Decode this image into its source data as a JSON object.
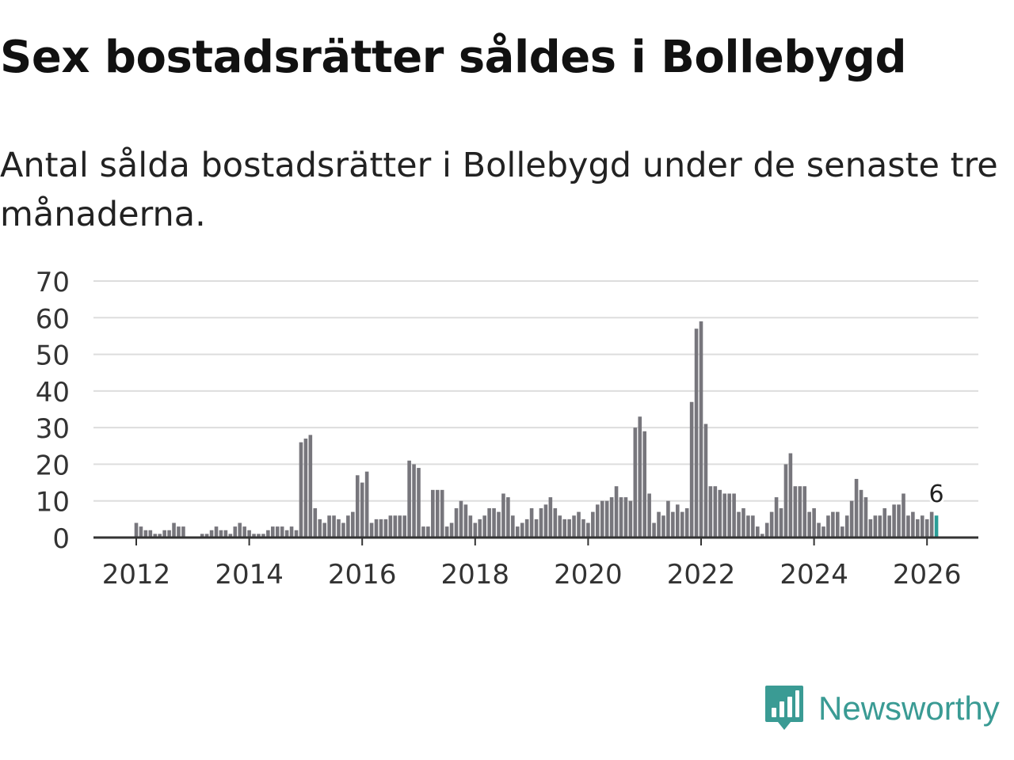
{
  "title": "Sex bostadsrätter såldes i Bollebygd",
  "subtitle": "Antal sålda bostadsrätter i Bollebygd under de senaste tre månaderna.",
  "brand": {
    "name": "Newsworthy",
    "icon": "newsworthy-logo-icon"
  },
  "colors": {
    "bar": "#77767c",
    "highlight": "#2a9d97",
    "grid": "#dddddd",
    "axis": "#333333",
    "brand": "#3a9b94"
  },
  "chart_data": {
    "type": "bar",
    "title": "Sex bostadsrätter såldes i Bollebygd",
    "xlabel": "",
    "ylabel": "",
    "ylim": [
      0,
      70
    ],
    "yticks": [
      0,
      10,
      20,
      30,
      40,
      50,
      60,
      70
    ],
    "xticks": [
      {
        "label": "2012",
        "year": 2012
      },
      {
        "label": "2014",
        "year": 2014
      },
      {
        "label": "2016",
        "year": 2016
      },
      {
        "label": "2018",
        "year": 2018
      },
      {
        "label": "2020",
        "year": 2020
      },
      {
        "label": "2022",
        "year": 2022
      },
      {
        "label": "2024",
        "year": 2024
      },
      {
        "label": "2026",
        "year": 2026
      }
    ],
    "start": "2011-01",
    "frequency": "monthly",
    "values": [
      0,
      0,
      0,
      0,
      0,
      0,
      0,
      0,
      0,
      0,
      0,
      0,
      4,
      3,
      2,
      2,
      1,
      1,
      2,
      2,
      4,
      3,
      3,
      0,
      0,
      0,
      1,
      1,
      2,
      3,
      2,
      2,
      1,
      3,
      4,
      3,
      2,
      1,
      1,
      1,
      2,
      3,
      3,
      3,
      2,
      3,
      2,
      26,
      27,
      28,
      8,
      5,
      4,
      6,
      6,
      5,
      4,
      6,
      7,
      17,
      15,
      18,
      4,
      5,
      5,
      5,
      6,
      6,
      6,
      6,
      21,
      20,
      19,
      3,
      3,
      13,
      13,
      13,
      3,
      4,
      8,
      10,
      9,
      6,
      4,
      5,
      6,
      8,
      8,
      7,
      12,
      11,
      6,
      3,
      4,
      5,
      8,
      5,
      8,
      9,
      11,
      8,
      6,
      5,
      5,
      6,
      7,
      5,
      4,
      7,
      9,
      10,
      10,
      11,
      14,
      11,
      11,
      10,
      30,
      33,
      29,
      12,
      4,
      7,
      6,
      10,
      7,
      9,
      7,
      8,
      37,
      57,
      59,
      31,
      14,
      14,
      13,
      12,
      12,
      12,
      7,
      8,
      6,
      6,
      3,
      1,
      4,
      7,
      11,
      8,
      20,
      23,
      14,
      14,
      14,
      7,
      8,
      4,
      3,
      6,
      7,
      7,
      3,
      6,
      10,
      16,
      13,
      11,
      5,
      6,
      6,
      8,
      6,
      9,
      9,
      12,
      6,
      7,
      5,
      6,
      5,
      7,
      6
    ],
    "highlight": {
      "label": "6",
      "value": 6,
      "period": "2026-03"
    }
  }
}
